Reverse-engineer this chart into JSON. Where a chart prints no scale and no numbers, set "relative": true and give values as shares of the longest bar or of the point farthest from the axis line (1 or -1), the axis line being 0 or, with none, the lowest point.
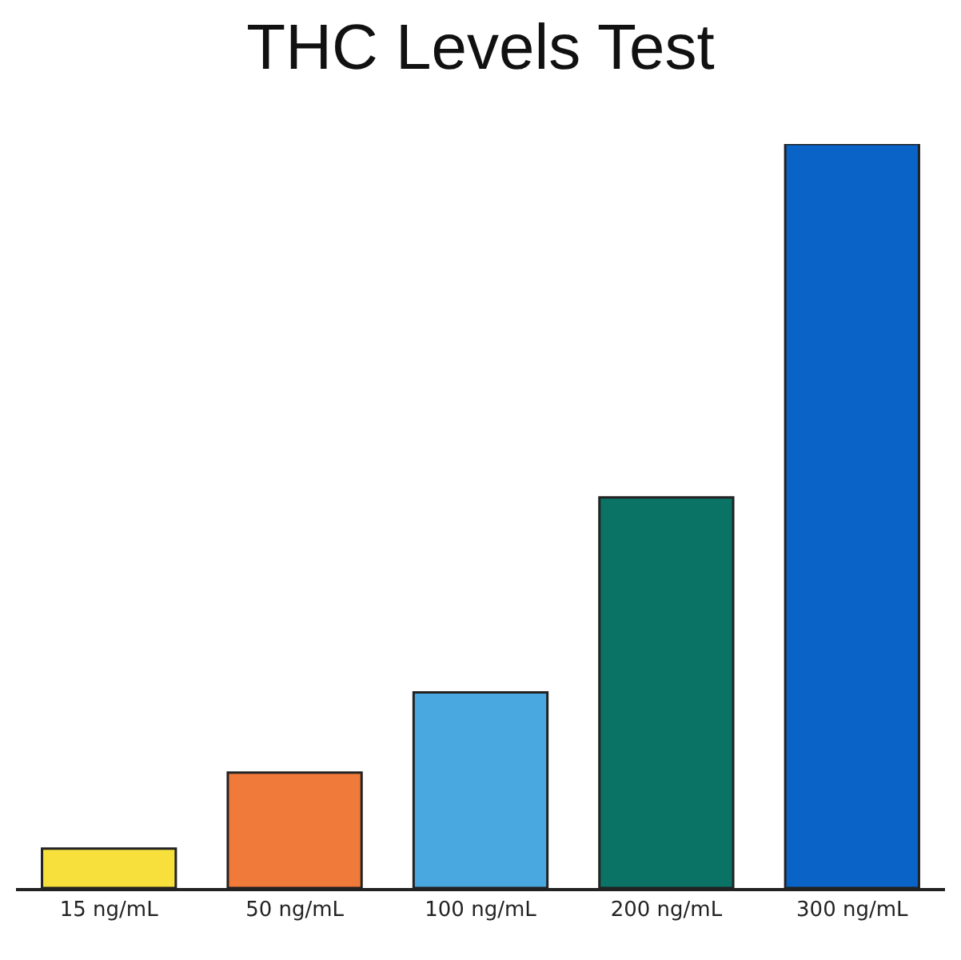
{
  "chart_data": {
    "type": "bar",
    "title": "THC Levels Test",
    "relative": true,
    "categories": [
      "15 ng/mL",
      "50 ng/mL",
      "100 ng/mL",
      "200 ng/mL",
      "300 ng/mL"
    ],
    "values": [
      0.053,
      0.155,
      0.263,
      0.525,
      1
    ],
    "colors": [
      "#f7e03c",
      "#f07a3a",
      "#4aa8e0",
      "#0a7366",
      "#0a64c8"
    ]
  }
}
